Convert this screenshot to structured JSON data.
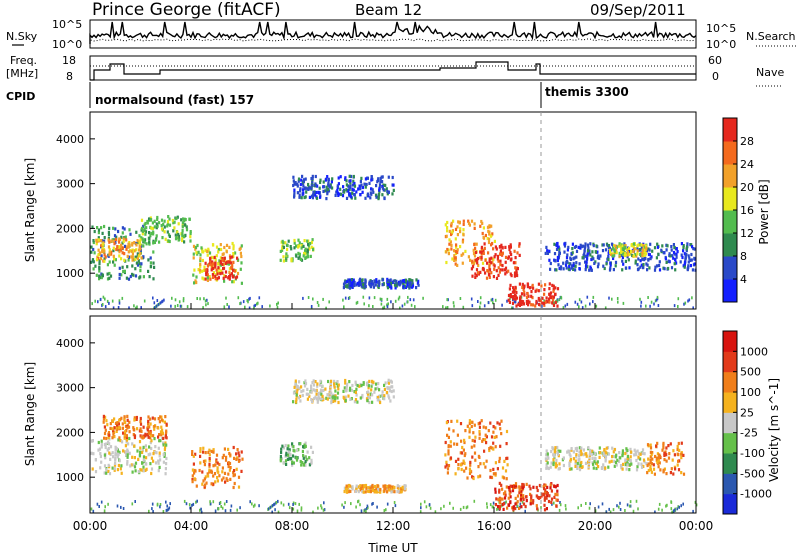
{
  "header": {
    "station": "Prince George (fitACF)",
    "beam": "Beam 12",
    "date": "09/Sep/2011"
  },
  "panels": {
    "nsky_label": "N.Sky",
    "nsearch_label": "N.Search",
    "freq_label_line1": "Freq.",
    "freq_label_line2": "[MHz]",
    "nave_label": "Nave",
    "cpid_label": "CPID",
    "cpid_1": "normalsound (fast) 157",
    "cpid_2": "themis 3300",
    "noise_ticks_left": [
      "10^5",
      "10^0"
    ],
    "noise_ticks_right": [
      "10^5",
      "10^0"
    ],
    "freq_ticks": [
      "18",
      "8"
    ],
    "nave_ticks": [
      "60",
      "0"
    ]
  },
  "colors": {
    "power": [
      "#1420ff",
      "#2a49c8",
      "#2f8a4f",
      "#53bc4f",
      "#e8e81e",
      "#f2a12a",
      "#f46a1e",
      "#e5281e"
    ],
    "velocity": [
      "#1a2ad8",
      "#2b58b0",
      "#2f8a4f",
      "#65c04a",
      "#c8c8c8",
      "#f5b21e",
      "#f07e1a",
      "#e23a1a",
      "#d8140f"
    ]
  },
  "chart_data": [
    {
      "type": "heatmap",
      "title": "Power",
      "xlabel": "Time UT",
      "ylabel": "Slant Range [km]",
      "x_ticks": [
        "00:00",
        "04:00",
        "08:00",
        "12:00",
        "16:00",
        "20:00",
        "00:00"
      ],
      "y_ticks": [
        1000,
        2000,
        3000,
        4000
      ],
      "ylim": [
        200,
        4600
      ],
      "colorbar_label": "Power [dB]",
      "colorbar_ticks": [
        4,
        8,
        12,
        16,
        20,
        24,
        28
      ],
      "regions": [
        {
          "t0": 0.0,
          "t1": 2.5,
          "r0": 900,
          "r1": 2100,
          "level": 2
        },
        {
          "t0": 0.2,
          "t1": 2.0,
          "r0": 1300,
          "r1": 1800,
          "level": 5
        },
        {
          "t0": 2.0,
          "t1": 4.0,
          "r0": 1700,
          "r1": 2300,
          "level": 3
        },
        {
          "t0": 4.0,
          "t1": 6.0,
          "r0": 800,
          "r1": 1700,
          "level": 4
        },
        {
          "t0": 4.5,
          "t1": 5.8,
          "r0": 900,
          "r1": 1400,
          "level": 7
        },
        {
          "t0": 7.5,
          "t1": 8.8,
          "r0": 1300,
          "r1": 1800,
          "level": 3
        },
        {
          "t0": 8.0,
          "t1": 12.0,
          "r0": 2700,
          "r1": 3200,
          "level": 1
        },
        {
          "t0": 10.0,
          "t1": 13.0,
          "r0": 700,
          "r1": 900,
          "level": 1
        },
        {
          "t0": 14.0,
          "t1": 16.0,
          "r0": 1200,
          "r1": 2200,
          "level": 5
        },
        {
          "t0": 15.0,
          "t1": 17.0,
          "r0": 900,
          "r1": 1700,
          "level": 7
        },
        {
          "t0": 16.5,
          "t1": 18.5,
          "r0": 300,
          "r1": 800,
          "level": 7
        },
        {
          "t0": 18.0,
          "t1": 24.0,
          "r0": 1100,
          "r1": 1700,
          "level": 1
        },
        {
          "t0": 20.5,
          "t1": 22.0,
          "r0": 1400,
          "r1": 1700,
          "level": 4
        }
      ]
    },
    {
      "type": "heatmap",
      "title": "Velocity",
      "xlabel": "Time UT",
      "ylabel": "Slant Range [km]",
      "x_ticks": [
        "00:00",
        "04:00",
        "08:00",
        "12:00",
        "16:00",
        "20:00",
        "00:00"
      ],
      "y_ticks": [
        1000,
        2000,
        3000,
        4000
      ],
      "ylim": [
        200,
        4600
      ],
      "colorbar_label": "Velocity [m s^-1]",
      "colorbar_ticks": [
        1000,
        500,
        100,
        25,
        -25,
        -100,
        -500,
        -1000
      ],
      "regions": [
        {
          "t0": 0.0,
          "t1": 3.0,
          "r0": 1100,
          "r1": 1900,
          "level": 4
        },
        {
          "t0": 0.5,
          "t1": 3.0,
          "r0": 1900,
          "r1": 2400,
          "level": 6
        },
        {
          "t0": 4.0,
          "t1": 6.0,
          "r0": 800,
          "r1": 1700,
          "level": 6
        },
        {
          "t0": 7.5,
          "t1": 8.8,
          "r0": 1300,
          "r1": 1800,
          "level": 3
        },
        {
          "t0": 8.0,
          "t1": 12.0,
          "r0": 2700,
          "r1": 3200,
          "level": 4
        },
        {
          "t0": 10.0,
          "t1": 12.5,
          "r0": 700,
          "r1": 850,
          "level": 5
        },
        {
          "t0": 14.0,
          "t1": 16.5,
          "r0": 1000,
          "r1": 2300,
          "level": 6
        },
        {
          "t0": 16.0,
          "t1": 18.5,
          "r0": 300,
          "r1": 900,
          "level": 7
        },
        {
          "t0": 18.0,
          "t1": 22.0,
          "r0": 1200,
          "r1": 1700,
          "level": 4
        },
        {
          "t0": 22.0,
          "t1": 23.5,
          "r0": 1100,
          "r1": 1800,
          "level": 6
        }
      ]
    }
  ]
}
